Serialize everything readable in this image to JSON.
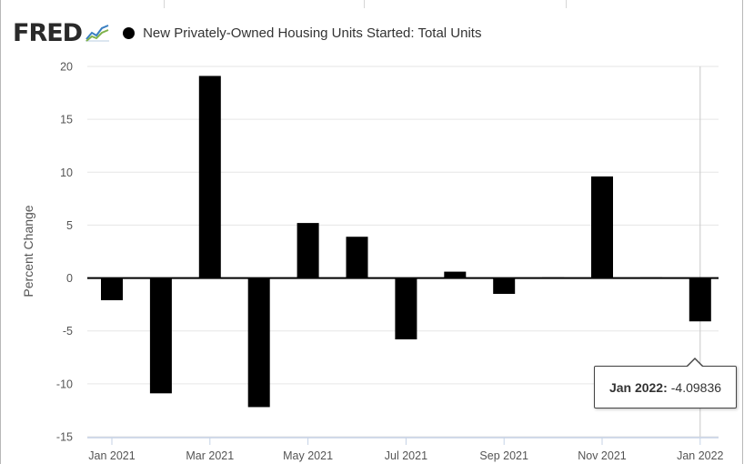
{
  "header": {
    "logo_text": "FRED",
    "logo_icon": "trend-line-icon",
    "series_label": "New Privately-Owned Housing Units Started: Total Units",
    "series_color": "#000000"
  },
  "tooltip": {
    "date": "Jan 2022:",
    "value": "-4.09836"
  },
  "chart_data": {
    "type": "bar",
    "title": "",
    "xlabel": "",
    "ylabel": "Percent Change",
    "ylim": [
      -15,
      20
    ],
    "yticks": [
      20,
      15,
      10,
      5,
      0,
      -5,
      -10,
      -15
    ],
    "grid": true,
    "legend": "top-left",
    "bar_color": "#000000",
    "series": [
      {
        "name": "New Privately-Owned Housing Units Started: Total Units",
        "categories": [
          "Jan 2021",
          "Feb 2021",
          "Mar 2021",
          "Apr 2021",
          "May 2021",
          "Jun 2021",
          "Jul 2021",
          "Aug 2021",
          "Sep 2021",
          "Oct 2021",
          "Nov 2021",
          "Dec 2021",
          "Jan 2022"
        ],
        "values": [
          -2.1,
          -10.9,
          19.1,
          -12.2,
          5.2,
          3.9,
          -5.8,
          0.6,
          -1.5,
          -0.1,
          9.6,
          -0.1,
          -4.09836
        ]
      }
    ],
    "xtick_labels": [
      "Jan 2021",
      "Mar 2021",
      "May 2021",
      "Jul 2021",
      "Sep 2021",
      "Nov 2021",
      "Jan 2022"
    ]
  }
}
